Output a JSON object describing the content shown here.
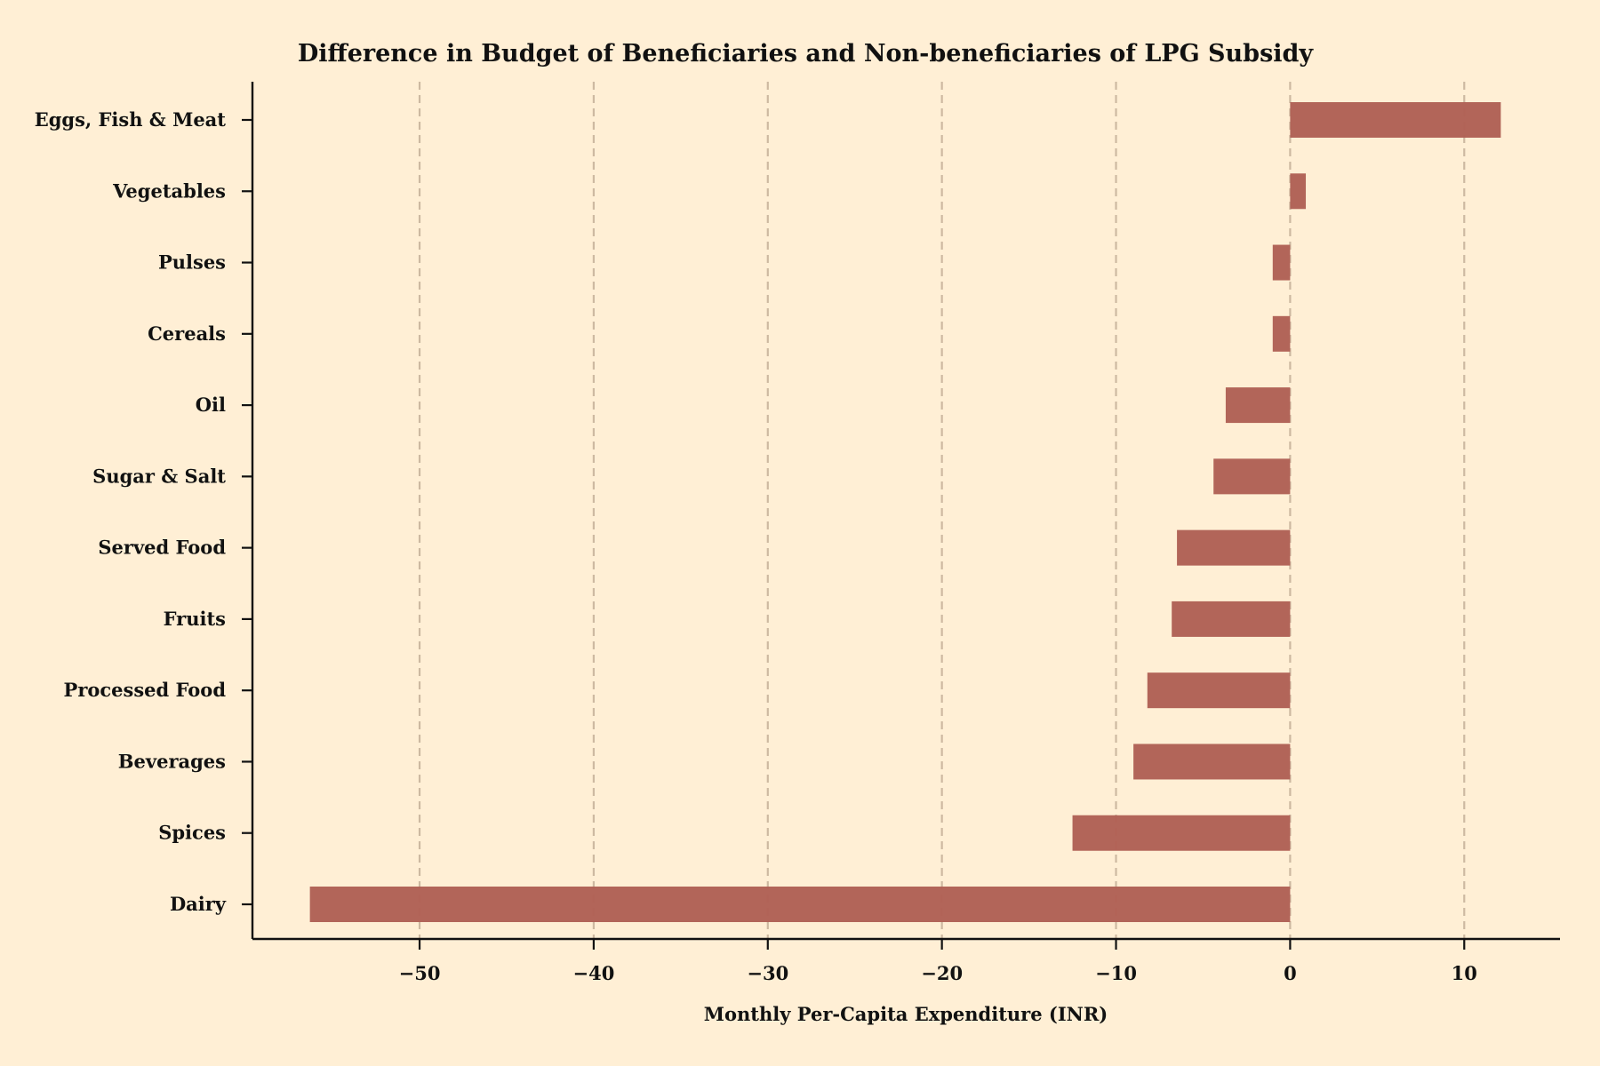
{
  "chart_data": {
    "type": "bar",
    "orientation": "horizontal",
    "title": "Difference in Budget of Beneficiaries and Non-beneficiaries of LPG Subsidy",
    "xlabel": "Monthly Per-Capita Expenditure (INR)",
    "ylabel": "",
    "categories": [
      "Eggs, Fish & Meat",
      "Vegetables",
      "Pulses",
      "Cereals",
      "Oil",
      "Sugar & Salt",
      "Served Food",
      "Fruits",
      "Processed Food",
      "Beverages",
      "Spices",
      "Dairy"
    ],
    "values": [
      12.1,
      0.9,
      -1.0,
      -1.0,
      -3.7,
      -4.4,
      -6.5,
      -6.8,
      -8.2,
      -9.0,
      -12.5,
      -56.3
    ],
    "xlim": [
      -59.6,
      15.5
    ],
    "xticks": [
      -50,
      -40,
      -30,
      -20,
      -10,
      0,
      10
    ],
    "xtick_labels": [
      "−50",
      "−40",
      "−30",
      "−20",
      "−10",
      "0",
      "10"
    ],
    "grid": "vertical-dashed",
    "colors": {
      "background": "#ffefd5",
      "bar": "#b06055",
      "grid": "#c8b49c",
      "axis": "#111111"
    }
  }
}
